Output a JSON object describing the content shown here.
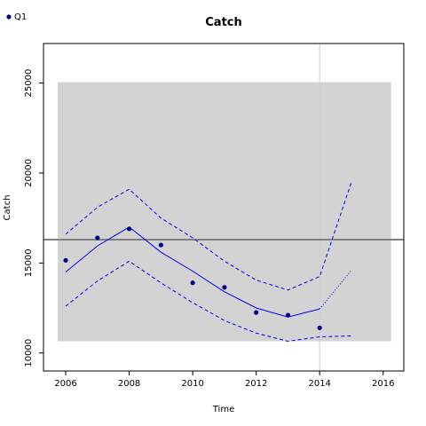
{
  "chart_data": {
    "type": "line",
    "title": "Catch",
    "xlabel": "Time",
    "ylabel": "Catch",
    "xlim": [
      2005.3,
      2016.65
    ],
    "ylim": [
      9000,
      27200
    ],
    "x_ticks": [
      2006,
      2008,
      2010,
      2012,
      2014,
      2016
    ],
    "y_ticks": [
      10000,
      15000,
      20000,
      25000
    ],
    "grid": false,
    "legend_position": "top-left",
    "legend": [
      {
        "label": "Q1",
        "color": "#00008b"
      }
    ],
    "shaded_region": {
      "x": [
        2005.75,
        2016.25
      ],
      "y": [
        10650,
        25050
      ],
      "color": "#d3d3d3"
    },
    "vertical_line": {
      "x": 2014,
      "color": "#cccccc"
    },
    "horizontal_line": {
      "y": 16300,
      "color": "#808080"
    },
    "observed": {
      "name": "Q1",
      "color": "#00008b",
      "x": [
        2006,
        2007,
        2008,
        2009,
        2010,
        2011,
        2012,
        2013,
        2014
      ],
      "y": [
        15150,
        16400,
        16900,
        16000,
        13900,
        13650,
        12250,
        12100,
        11400
      ]
    },
    "fitted": {
      "color": "#0000ff",
      "x": [
        2006,
        2007,
        2008,
        2009,
        2010,
        2011,
        2012,
        2013,
        2014
      ],
      "y": [
        14500,
        15950,
        17000,
        15600,
        14550,
        13400,
        12500,
        12000,
        12450
      ]
    },
    "upper_ci": {
      "color": "#0000ff",
      "x": [
        2006,
        2007,
        2008,
        2009,
        2010,
        2011,
        2012,
        2013,
        2014,
        2015
      ],
      "y": [
        16600,
        18100,
        19100,
        17500,
        16400,
        15100,
        14050,
        13500,
        14250,
        19500
      ]
    },
    "lower_ci": {
      "color": "#0000ff",
      "x": [
        2006,
        2007,
        2008,
        2009,
        2010,
        2011,
        2012,
        2013,
        2014,
        2015
      ],
      "y": [
        12600,
        14000,
        15100,
        13900,
        12800,
        11800,
        11100,
        10650,
        10900,
        10950
      ]
    },
    "forecast": {
      "color": "#0000ff",
      "x": [
        2014,
        2015
      ],
      "y": [
        12450,
        14600
      ]
    }
  }
}
